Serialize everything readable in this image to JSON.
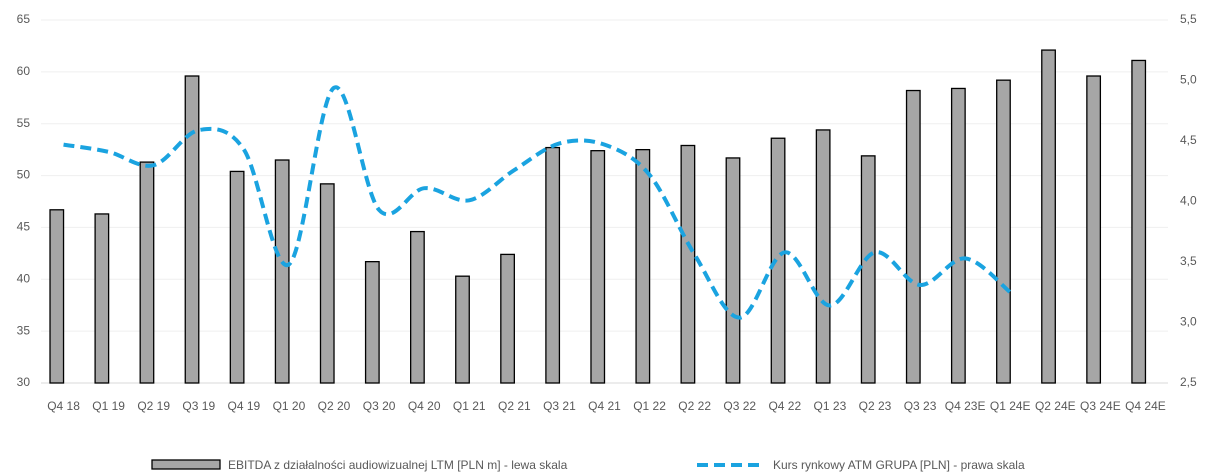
{
  "chart_data": {
    "type": "bar_line",
    "categories": [
      "Q4 18",
      "Q1 19",
      "Q2 19",
      "Q3 19",
      "Q4 19",
      "Q1 20",
      "Q2 20",
      "Q3 20",
      "Q4 20",
      "Q1 21",
      "Q2 21",
      "Q3 21",
      "Q4 21",
      "Q1 22",
      "Q2 22",
      "Q3 22",
      "Q4 22",
      "Q1 23",
      "Q2 23",
      "Q3 23",
      "Q4 23E",
      "Q1 24E",
      "Q2 24E",
      "Q3 24E",
      "Q4 24E"
    ],
    "series": [
      {
        "name": "EBITDA z działalności audiowizualnej LTM [PLN m] - lewa skala",
        "type": "bar",
        "color": "#a6a6a6",
        "values": [
          46.7,
          46.3,
          51.3,
          59.6,
          50.4,
          51.5,
          49.2,
          41.7,
          44.6,
          40.3,
          42.4,
          52.7,
          52.4,
          52.5,
          52.9,
          51.7,
          53.6,
          54.4,
          51.9,
          58.2,
          58.4,
          59.2,
          62.1,
          59.6,
          61.1
        ]
      },
      {
        "name": "Kurs rynkowy ATM GRUPA [PLN] - prawa skala",
        "type": "line",
        "axis": "y2",
        "color": "#1aa3e0",
        "values": [
          4.47,
          4.41,
          4.3,
          4.59,
          4.43,
          3.48,
          4.94,
          3.93,
          4.11,
          4.01,
          4.26,
          4.48,
          4.47,
          4.22,
          3.56,
          3.04,
          3.58,
          3.14,
          3.58,
          3.31,
          3.53,
          3.25,
          null,
          null,
          null
        ]
      }
    ],
    "ylim": [
      30,
      65
    ],
    "yticks": [
      30,
      35,
      40,
      45,
      50,
      55,
      60,
      65
    ],
    "y2lim": [
      2.5,
      5.5
    ],
    "y2ticks": [
      {
        "value": 2.5,
        "label": "2,5"
      },
      {
        "value": 3.0,
        "label": "3,0"
      },
      {
        "value": 3.5,
        "label": "3,5"
      },
      {
        "value": 4.0,
        "label": "4,0"
      },
      {
        "value": 4.5,
        "label": "4,5"
      },
      {
        "value": 5.0,
        "label": "5,0"
      },
      {
        "value": 5.5,
        "label": "5,5"
      }
    ],
    "grid": true,
    "legend": "bottom"
  }
}
